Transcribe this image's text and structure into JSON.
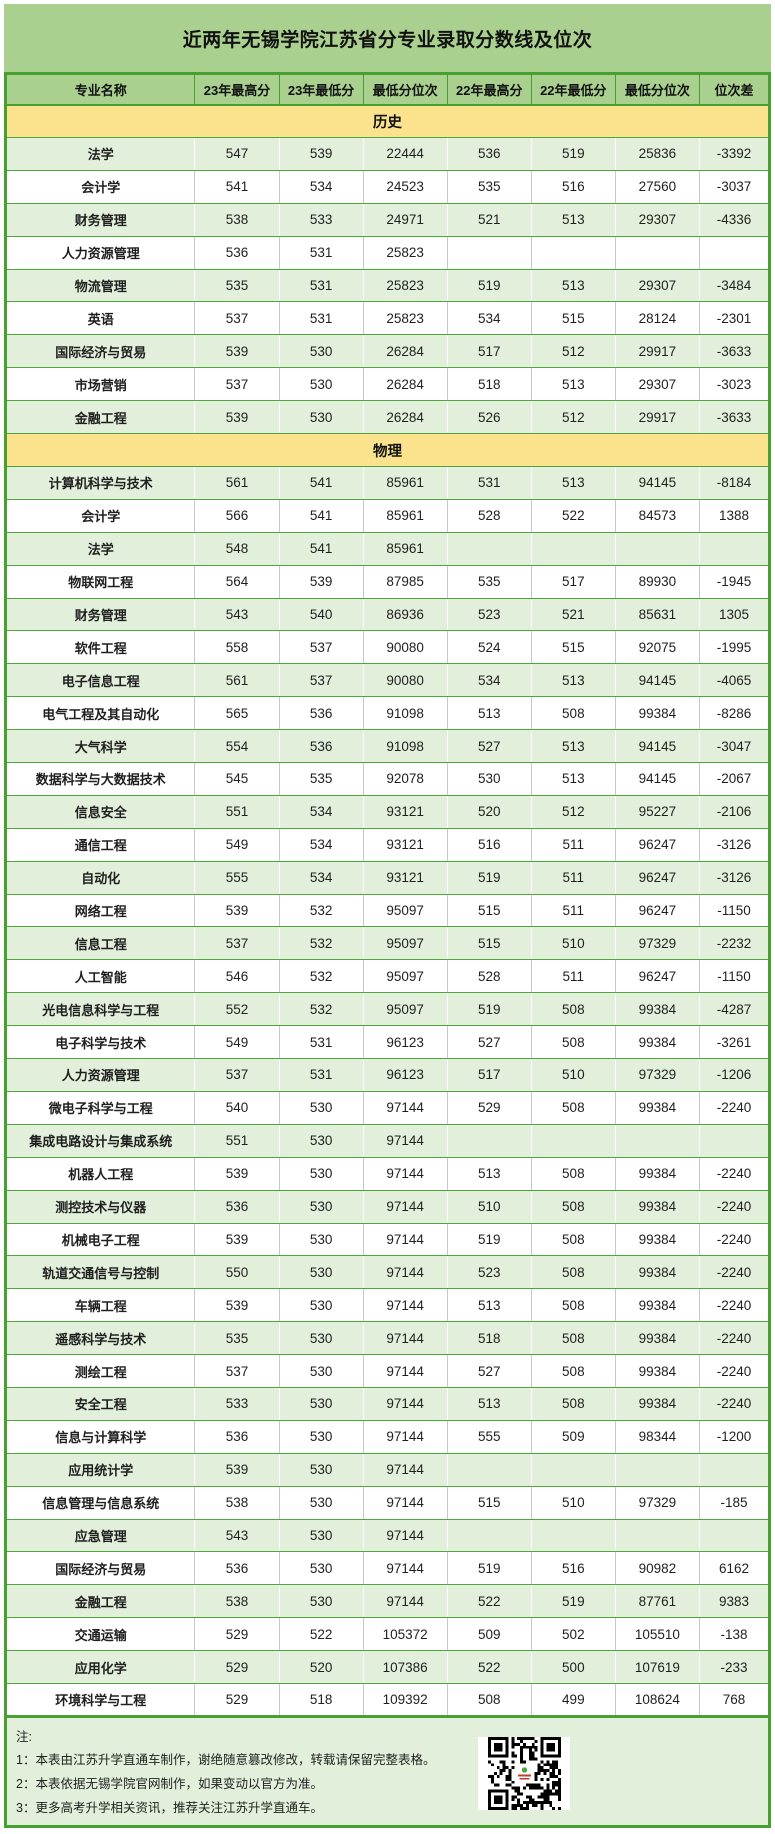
{
  "title": "近两年无锡学院江苏省分专业录取分数线及位次",
  "columns": [
    "专业名称",
    "23年最高分",
    "23年最低分",
    "最低分位次",
    "22年最高分",
    "22年最低分",
    "最低分位次",
    "位次差"
  ],
  "sections": [
    {
      "name": "历史",
      "rows": [
        [
          "法学",
          "547",
          "539",
          "22444",
          "536",
          "519",
          "25836",
          "-3392"
        ],
        [
          "会计学",
          "541",
          "534",
          "24523",
          "535",
          "516",
          "27560",
          "-3037"
        ],
        [
          "财务管理",
          "538",
          "533",
          "24971",
          "521",
          "513",
          "29307",
          "-4336"
        ],
        [
          "人力资源管理",
          "536",
          "531",
          "25823",
          "",
          "",
          "",
          ""
        ],
        [
          "物流管理",
          "535",
          "531",
          "25823",
          "519",
          "513",
          "29307",
          "-3484"
        ],
        [
          "英语",
          "537",
          "531",
          "25823",
          "534",
          "515",
          "28124",
          "-2301"
        ],
        [
          "国际经济与贸易",
          "539",
          "530",
          "26284",
          "517",
          "512",
          "29917",
          "-3633"
        ],
        [
          "市场营销",
          "537",
          "530",
          "26284",
          "518",
          "513",
          "29307",
          "-3023"
        ],
        [
          "金融工程",
          "539",
          "530",
          "26284",
          "526",
          "512",
          "29917",
          "-3633"
        ]
      ]
    },
    {
      "name": "物理",
      "rows": [
        [
          "计算机科学与技术",
          "561",
          "541",
          "85961",
          "531",
          "513",
          "94145",
          "-8184"
        ],
        [
          "会计学",
          "566",
          "541",
          "85961",
          "528",
          "522",
          "84573",
          "1388"
        ],
        [
          "法学",
          "548",
          "541",
          "85961",
          "",
          "",
          "",
          ""
        ],
        [
          "物联网工程",
          "564",
          "539",
          "87985",
          "535",
          "517",
          "89930",
          "-1945"
        ],
        [
          "财务管理",
          "543",
          "540",
          "86936",
          "523",
          "521",
          "85631",
          "1305"
        ],
        [
          "软件工程",
          "558",
          "537",
          "90080",
          "524",
          "515",
          "92075",
          "-1995"
        ],
        [
          "电子信息工程",
          "561",
          "537",
          "90080",
          "534",
          "513",
          "94145",
          "-4065"
        ],
        [
          "电气工程及其自动化",
          "565",
          "536",
          "91098",
          "513",
          "508",
          "99384",
          "-8286"
        ],
        [
          "大气科学",
          "554",
          "536",
          "91098",
          "527",
          "513",
          "94145",
          "-3047"
        ],
        [
          "数据科学与大数据技术",
          "545",
          "535",
          "92078",
          "530",
          "513",
          "94145",
          "-2067"
        ],
        [
          "信息安全",
          "551",
          "534",
          "93121",
          "520",
          "512",
          "95227",
          "-2106"
        ],
        [
          "通信工程",
          "549",
          "534",
          "93121",
          "516",
          "511",
          "96247",
          "-3126"
        ],
        [
          "自动化",
          "555",
          "534",
          "93121",
          "519",
          "511",
          "96247",
          "-3126"
        ],
        [
          "网络工程",
          "539",
          "532",
          "95097",
          "515",
          "511",
          "96247",
          "-1150"
        ],
        [
          "信息工程",
          "537",
          "532",
          "95097",
          "515",
          "510",
          "97329",
          "-2232"
        ],
        [
          "人工智能",
          "546",
          "532",
          "95097",
          "528",
          "511",
          "96247",
          "-1150"
        ],
        [
          "光电信息科学与工程",
          "552",
          "532",
          "95097",
          "519",
          "508",
          "99384",
          "-4287"
        ],
        [
          "电子科学与技术",
          "549",
          "531",
          "96123",
          "527",
          "508",
          "99384",
          "-3261"
        ],
        [
          "人力资源管理",
          "537",
          "531",
          "96123",
          "517",
          "510",
          "97329",
          "-1206"
        ],
        [
          "微电子科学与工程",
          "540",
          "530",
          "97144",
          "529",
          "508",
          "99384",
          "-2240"
        ],
        [
          "集成电路设计与集成系统",
          "551",
          "530",
          "97144",
          "",
          "",
          "",
          ""
        ],
        [
          "机器人工程",
          "539",
          "530",
          "97144",
          "513",
          "508",
          "99384",
          "-2240"
        ],
        [
          "测控技术与仪器",
          "536",
          "530",
          "97144",
          "510",
          "508",
          "99384",
          "-2240"
        ],
        [
          "机械电子工程",
          "539",
          "530",
          "97144",
          "519",
          "508",
          "99384",
          "-2240"
        ],
        [
          "轨道交通信号与控制",
          "550",
          "530",
          "97144",
          "523",
          "508",
          "99384",
          "-2240"
        ],
        [
          "车辆工程",
          "539",
          "530",
          "97144",
          "513",
          "508",
          "99384",
          "-2240"
        ],
        [
          "遥感科学与技术",
          "535",
          "530",
          "97144",
          "518",
          "508",
          "99384",
          "-2240"
        ],
        [
          "测绘工程",
          "537",
          "530",
          "97144",
          "527",
          "508",
          "99384",
          "-2240"
        ],
        [
          "安全工程",
          "533",
          "530",
          "97144",
          "513",
          "508",
          "99384",
          "-2240"
        ],
        [
          "信息与计算科学",
          "536",
          "530",
          "97144",
          "555",
          "509",
          "98344",
          "-1200"
        ],
        [
          "应用统计学",
          "539",
          "530",
          "97144",
          "",
          "",
          "",
          ""
        ],
        [
          "信息管理与信息系统",
          "538",
          "530",
          "97144",
          "515",
          "510",
          "97329",
          "-185"
        ],
        [
          "应急管理",
          "543",
          "530",
          "97144",
          "",
          "",
          "",
          ""
        ],
        [
          "国际经济与贸易",
          "536",
          "530",
          "97144",
          "519",
          "516",
          "90982",
          "6162"
        ],
        [
          "金融工程",
          "538",
          "530",
          "97144",
          "522",
          "519",
          "87761",
          "9383"
        ],
        [
          "交通运输",
          "529",
          "522",
          "105372",
          "509",
          "502",
          "105510",
          "-138"
        ],
        [
          "应用化学",
          "529",
          "520",
          "107386",
          "522",
          "500",
          "107619",
          "-233"
        ],
        [
          "环境科学与工程",
          "529",
          "518",
          "109392",
          "508",
          "499",
          "108624",
          "768"
        ]
      ]
    }
  ],
  "notes": {
    "label": "注:",
    "items": [
      "1：本表由江苏升学直通车制作，谢绝随意篡改修改，转载请保留完整表格。",
      "2：本表依据无锡学院官网制作，如果变动以官方为准。",
      "3：更多高考升学相关资讯，推荐关注江苏升学直通车。"
    ]
  },
  "icons": {
    "qr_code": "qr-code"
  },
  "colors": {
    "band_green": "#a9d08e",
    "border_green": "#46a12f",
    "section_yellow": "#fbe38e",
    "row_tint_green": "#e2efda",
    "footer_background": "#e2efda",
    "text": "#1f1f1f"
  }
}
